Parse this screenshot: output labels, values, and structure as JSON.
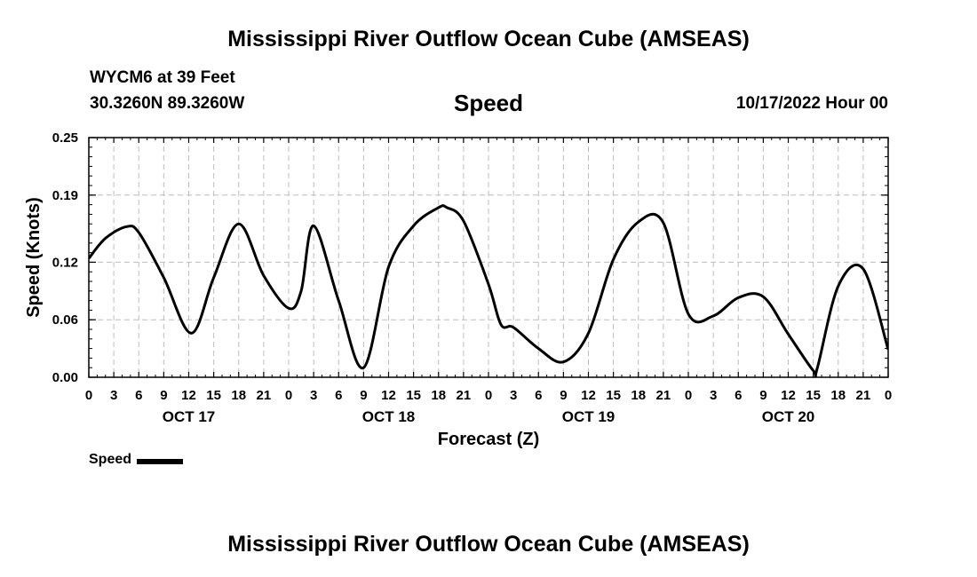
{
  "header": {
    "title": "Mississippi River Outflow Ocean Cube (AMSEAS)",
    "station": "WYCM6 at 39 Feet",
    "coords": "30.3260N  89.3260W",
    "subtitle": "Speed",
    "datetime": "10/17/2022 Hour 00"
  },
  "footer": {
    "title": "Mississippi River Outflow Ocean Cube (AMSEAS)"
  },
  "legend": {
    "label": "Speed",
    "color": "#000000"
  },
  "chart_data": {
    "type": "line",
    "title": "Speed",
    "xlabel": "Forecast (Z)",
    "ylabel": "Speed (Knots)",
    "xlim": [
      0,
      96
    ],
    "ylim": [
      0,
      0.25
    ],
    "yticks": [
      0.0,
      0.06,
      0.12,
      0.19,
      0.25
    ],
    "ytick_labels": [
      "0.00",
      "0.06",
      "0.12",
      "0.19",
      "0.25"
    ],
    "xticks": [
      0,
      3,
      6,
      9,
      12,
      15,
      18,
      21,
      24,
      27,
      30,
      33,
      36,
      39,
      42,
      45,
      48,
      51,
      54,
      57,
      60,
      63,
      66,
      69,
      72,
      75,
      78,
      81,
      84,
      87,
      90,
      93,
      96
    ],
    "xtick_labels": [
      "0",
      "3",
      "6",
      "9",
      "12",
      "15",
      "18",
      "21",
      "0",
      "3",
      "6",
      "9",
      "12",
      "15",
      "18",
      "21",
      "0",
      "3",
      "6",
      "9",
      "12",
      "15",
      "18",
      "21",
      "0",
      "3",
      "6",
      "9",
      "12",
      "15",
      "18",
      "21",
      "0"
    ],
    "day_labels": [
      {
        "label": "OCT 17",
        "hour": 12
      },
      {
        "label": "OCT 18",
        "hour": 36
      },
      {
        "label": "OCT 19",
        "hour": 60
      },
      {
        "label": "OCT 20",
        "hour": 84
      }
    ],
    "grid": true,
    "series": [
      {
        "name": "Speed",
        "color": "#000000",
        "x": [
          0,
          2,
          4.5,
          6,
          9,
          12.3,
          15,
          18,
          21,
          24,
          25.5,
          27,
          30,
          33,
          36,
          39,
          42,
          43,
          45,
          48,
          49.5,
          51,
          54,
          57,
          60,
          63,
          66,
          69,
          72,
          75,
          78,
          81,
          84,
          87,
          87.5,
          90,
          93,
          96
        ],
        "values": [
          0.124,
          0.145,
          0.157,
          0.151,
          0.104,
          0.046,
          0.104,
          0.16,
          0.106,
          0.072,
          0.09,
          0.158,
          0.08,
          0.01,
          0.115,
          0.158,
          0.177,
          0.177,
          0.163,
          0.097,
          0.055,
          0.052,
          0.03,
          0.016,
          0.046,
          0.123,
          0.162,
          0.161,
          0.066,
          0.064,
          0.083,
          0.084,
          0.045,
          0.007,
          0.01,
          0.095,
          0.113,
          0.029
        ]
      }
    ]
  }
}
